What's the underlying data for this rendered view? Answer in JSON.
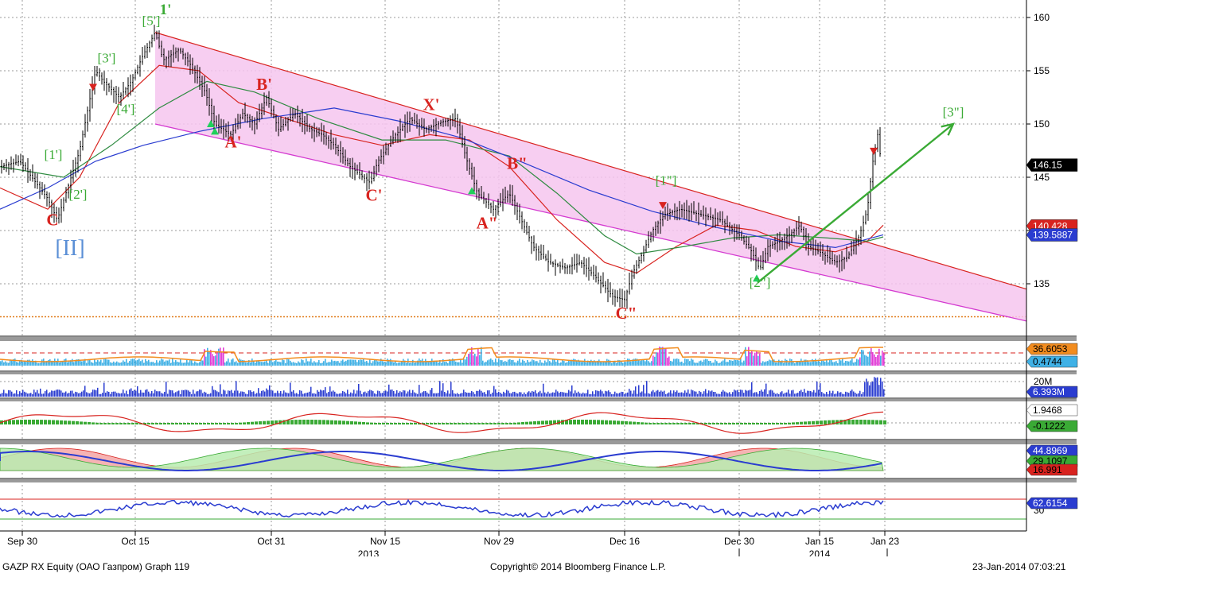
{
  "chart_data": [
    {
      "panel": "price",
      "type": "candlestick",
      "y_ticks": [
        135,
        140,
        145,
        150,
        155,
        160
      ],
      "ylim": [
        130.5,
        161.5
      ],
      "x_tick_labels": [
        "Sep 30",
        "Oct 15",
        "Oct 31",
        "Nov 15",
        "Nov 29",
        "Dec 16",
        "Dec 30",
        "Jan 15",
        "Jan 23"
      ],
      "year_labels": [
        "2013",
        "2014"
      ],
      "close_path": [
        [
          0,
          146
        ],
        [
          25,
          146.5
        ],
        [
          45,
          144.5
        ],
        [
          60,
          143
        ],
        [
          72,
          141
        ],
        [
          85,
          144
        ],
        [
          100,
          147.5
        ],
        [
          112,
          152
        ],
        [
          120,
          155
        ],
        [
          130,
          154
        ],
        [
          150,
          152.5
        ],
        [
          165,
          154
        ],
        [
          180,
          156.5
        ],
        [
          195,
          158.6
        ],
        [
          205,
          156
        ],
        [
          225,
          157
        ],
        [
          240,
          155.5
        ],
        [
          258,
          153
        ],
        [
          270,
          150
        ],
        [
          290,
          149
        ],
        [
          305,
          151
        ],
        [
          320,
          150
        ],
        [
          335,
          152.5
        ],
        [
          350,
          149.5
        ],
        [
          370,
          151
        ],
        [
          390,
          149.5
        ],
        [
          405,
          149
        ],
        [
          420,
          148
        ],
        [
          440,
          146
        ],
        [
          465,
          144.5
        ],
        [
          475,
          146.5
        ],
        [
          495,
          148.8
        ],
        [
          515,
          150.5
        ],
        [
          535,
          149.5
        ],
        [
          555,
          150.2
        ],
        [
          573,
          150.5
        ],
        [
          585,
          147
        ],
        [
          600,
          143.5
        ],
        [
          620,
          142
        ],
        [
          640,
          143.5
        ],
        [
          655,
          141
        ],
        [
          670,
          138.5
        ],
        [
          690,
          137
        ],
        [
          710,
          136.5
        ],
        [
          730,
          137
        ],
        [
          750,
          135.5
        ],
        [
          770,
          133.8
        ],
        [
          785,
          133.5
        ],
        [
          795,
          136
        ],
        [
          805,
          137.5
        ],
        [
          820,
          140
        ],
        [
          835,
          141.5
        ],
        [
          855,
          142
        ],
        [
          880,
          141.5
        ],
        [
          905,
          141
        ],
        [
          930,
          139.5
        ],
        [
          945,
          138
        ],
        [
          955,
          136.3
        ],
        [
          965,
          138.5
        ],
        [
          980,
          139
        ],
        [
          995,
          139.8
        ],
        [
          1005,
          140.5
        ],
        [
          1015,
          138.5
        ],
        [
          1030,
          138
        ],
        [
          1050,
          137
        ],
        [
          1065,
          137.5
        ],
        [
          1080,
          139.5
        ],
        [
          1090,
          142
        ],
        [
          1097,
          146.5
        ],
        [
          1103,
          149
        ],
        [
          1108,
          146
        ]
      ],
      "moving_averages": [
        {
          "color": "#d8231f",
          "points": [
            [
              0,
              144
            ],
            [
              60,
              142
            ],
            [
              100,
              145
            ],
            [
              150,
              152
            ],
            [
              200,
              155.5
            ],
            [
              250,
              155
            ],
            [
              300,
              152
            ],
            [
              360,
              150.5
            ],
            [
              420,
              149
            ],
            [
              480,
              148
            ],
            [
              540,
              149
            ],
            [
              590,
              148.5
            ],
            [
              640,
              146
            ],
            [
              700,
              141
            ],
            [
              760,
              137
            ],
            [
              800,
              136
            ],
            [
              850,
              138.5
            ],
            [
              900,
              140.5
            ],
            [
              950,
              140
            ],
            [
              1000,
              138.5
            ],
            [
              1050,
              138
            ],
            [
              1090,
              139
            ],
            [
              1110,
              140.5
            ]
          ]
        },
        {
          "color": "#2e8b40",
          "points": [
            [
              0,
              146
            ],
            [
              80,
              145
            ],
            [
              140,
              148
            ],
            [
              200,
              151.5
            ],
            [
              260,
              154
            ],
            [
              320,
              153
            ],
            [
              400,
              150.5
            ],
            [
              480,
              148.5
            ],
            [
              560,
              148.5
            ],
            [
              640,
              147
            ],
            [
              700,
              143.5
            ],
            [
              760,
              139.5
            ],
            [
              800,
              137.8
            ],
            [
              860,
              138.5
            ],
            [
              920,
              139.3
            ],
            [
              980,
              139.6
            ],
            [
              1040,
              139.3
            ],
            [
              1090,
              139
            ],
            [
              1110,
              139.4
            ]
          ]
        },
        {
          "color": "#2a3cd0",
          "points": [
            [
              0,
              142
            ],
            [
              60,
              144
            ],
            [
              120,
              146.5
            ],
            [
              180,
              148
            ],
            [
              250,
              149.3
            ],
            [
              330,
              150.5
            ],
            [
              420,
              151.5
            ],
            [
              500,
              150.3
            ],
            [
              580,
              148.7
            ],
            [
              660,
              146.3
            ],
            [
              740,
              143.8
            ],
            [
              820,
              141.8
            ],
            [
              900,
              140.3
            ],
            [
              980,
              139
            ],
            [
              1050,
              138.4
            ],
            [
              1110,
              139.6
            ]
          ]
        }
      ],
      "channel": {
        "upper_line": [
          [
            195,
            158.6
          ],
          [
            1290,
            134.5
          ]
        ],
        "lower_line": [
          [
            195,
            150
          ],
          [
            1290,
            131.5
          ]
        ]
      },
      "projection_arrow": [
        [
          952,
          135.1
        ],
        [
          1198,
          150
        ]
      ],
      "reference_line": 131.9,
      "wave_labels": [
        {
          "text": "1'",
          "x": 208,
          "y": 160.3,
          "style": "green-bold"
        },
        {
          "text": "[5']",
          "x": 190,
          "y": 159.3,
          "style": "green"
        },
        {
          "text": "[3']",
          "x": 134,
          "y": 155.8,
          "style": "green"
        },
        {
          "text": "[4']",
          "x": 158,
          "y": 151,
          "style": "green"
        },
        {
          "text": "[1']",
          "x": 67,
          "y": 146.7,
          "style": "green"
        },
        {
          "text": "[2']",
          "x": 98,
          "y": 143,
          "style": "green"
        },
        {
          "text": "C",
          "x": 66,
          "y": 140.5,
          "style": "red"
        },
        {
          "text": "[II]",
          "x": 88,
          "y": 137.7,
          "style": "blue"
        },
        {
          "text": "B'",
          "x": 332,
          "y": 153.2,
          "style": "red"
        },
        {
          "text": "A'",
          "x": 293,
          "y": 147.8,
          "style": "red"
        },
        {
          "text": "X'",
          "x": 542,
          "y": 151.3,
          "style": "red"
        },
        {
          "text": "C'",
          "x": 470,
          "y": 142.8,
          "style": "red"
        },
        {
          "text": "B\"",
          "x": 650,
          "y": 145.8,
          "style": "red"
        },
        {
          "text": "A\"",
          "x": 612,
          "y": 140.2,
          "style": "red"
        },
        {
          "text": "[1\"]",
          "x": 837,
          "y": 144.3,
          "style": "green"
        },
        {
          "text": "C\"",
          "x": 787,
          "y": 131.7,
          "style": "red"
        },
        {
          "text": "[2\"]",
          "x": 955,
          "y": 134.7,
          "style": "green"
        },
        {
          "text": "[3\"]",
          "x": 1198,
          "y": 150.7,
          "style": "green"
        }
      ],
      "signal_markers": [
        {
          "kind": "sell",
          "x": 117,
          "y": 153.4
        },
        {
          "kind": "buy",
          "x": 265,
          "y": 150
        },
        {
          "kind": "buy",
          "x": 270,
          "y": 149.3
        },
        {
          "kind": "buy",
          "x": 593,
          "y": 143.7
        },
        {
          "kind": "sell",
          "x": 833,
          "y": 142.3
        },
        {
          "kind": "buy",
          "x": 951,
          "y": 135.5
        },
        {
          "kind": "sell",
          "x": 1098,
          "y": 147.4
        }
      ],
      "value_badges": [
        {
          "text": "146.15",
          "value": 146.15,
          "bg": "#000000",
          "fg": "#ffffff"
        },
        {
          "text": "140.428",
          "value": 140.428,
          "bg": "#d8231f",
          "fg": "#ffffff"
        },
        {
          "text": "139.5887",
          "value": 139.5887,
          "bg": "#2a3cd0",
          "fg": "#ffffff"
        }
      ]
    },
    {
      "panel": "indicator-1",
      "type": "histogram",
      "value_badges": [
        {
          "text": "36.6053",
          "bg": "#f28c1e",
          "fg": "#000000"
        },
        {
          "text": "0.4744",
          "bg": "#3fb1e6",
          "fg": "#000000"
        }
      ]
    },
    {
      "panel": "volume",
      "type": "bar",
      "axis_label": "20M",
      "value_badges": [
        {
          "text": "6.393M",
          "bg": "#2a3cd0",
          "fg": "#ffffff"
        }
      ]
    },
    {
      "panel": "indicator-3",
      "type": "line",
      "value_badges": [
        {
          "text": "1.9468",
          "bg": "#ffffff",
          "fg": "#000000"
        },
        {
          "text": "-0.1222",
          "bg": "#3aaa35",
          "fg": "#000000"
        }
      ]
    },
    {
      "panel": "indicator-4",
      "type": "area",
      "value_badges": [
        {
          "text": "44.8969",
          "bg": "#2a3cd0",
          "fg": "#ffffff"
        },
        {
          "text": "29.1097",
          "bg": "#3aaa35",
          "fg": "#000000"
        },
        {
          "text": "16.991",
          "bg": "#d8231f",
          "fg": "#000000"
        }
      ]
    },
    {
      "panel": "indicator-5",
      "type": "line",
      "axis_label": "30",
      "value_badges": [
        {
          "text": "62.6154",
          "bg": "#2a3cd0",
          "fg": "#ffffff"
        }
      ]
    }
  ],
  "footer": {
    "left": "GAZP RX Equity (ОАО Газпром) Graph 119",
    "center": "Copyright© 2014 Bloomberg Finance L.P.",
    "right": "23-Jan-2014 07:03:21"
  }
}
